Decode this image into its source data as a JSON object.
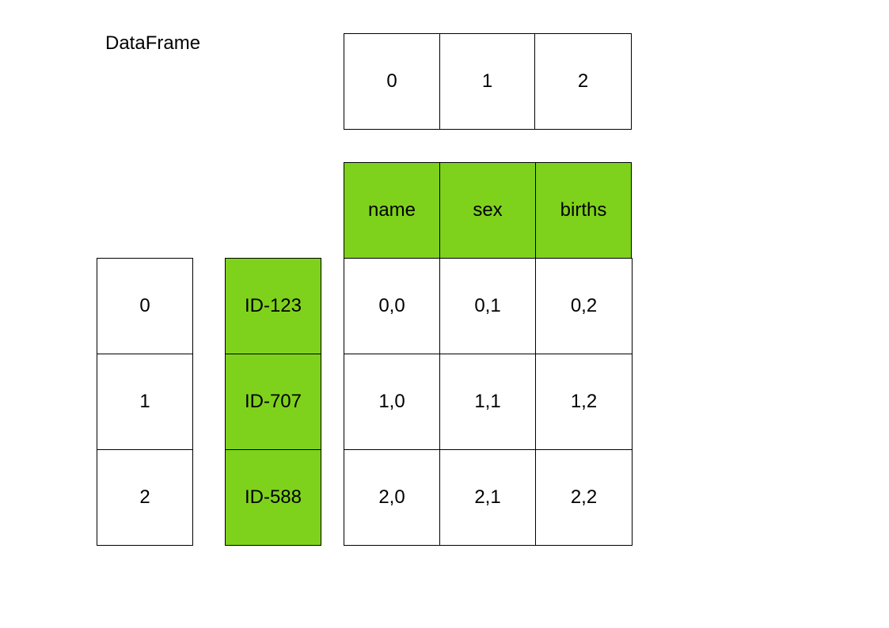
{
  "title": "DataFrame",
  "colors": {
    "highlight": "#7fd21c",
    "plain": "#ffffff",
    "border": "#000000"
  },
  "column_positions": [
    "0",
    "1",
    "2"
  ],
  "column_labels": [
    "name",
    "sex",
    "births"
  ],
  "row_positions": [
    "0",
    "1",
    "2"
  ],
  "row_labels": [
    "ID-123",
    "ID-707",
    "ID-588"
  ],
  "values": [
    [
      "0,0",
      "0,1",
      "0,2"
    ],
    [
      "1,0",
      "1,1",
      "1,2"
    ],
    [
      "2,0",
      "2,1",
      "2,2"
    ]
  ]
}
